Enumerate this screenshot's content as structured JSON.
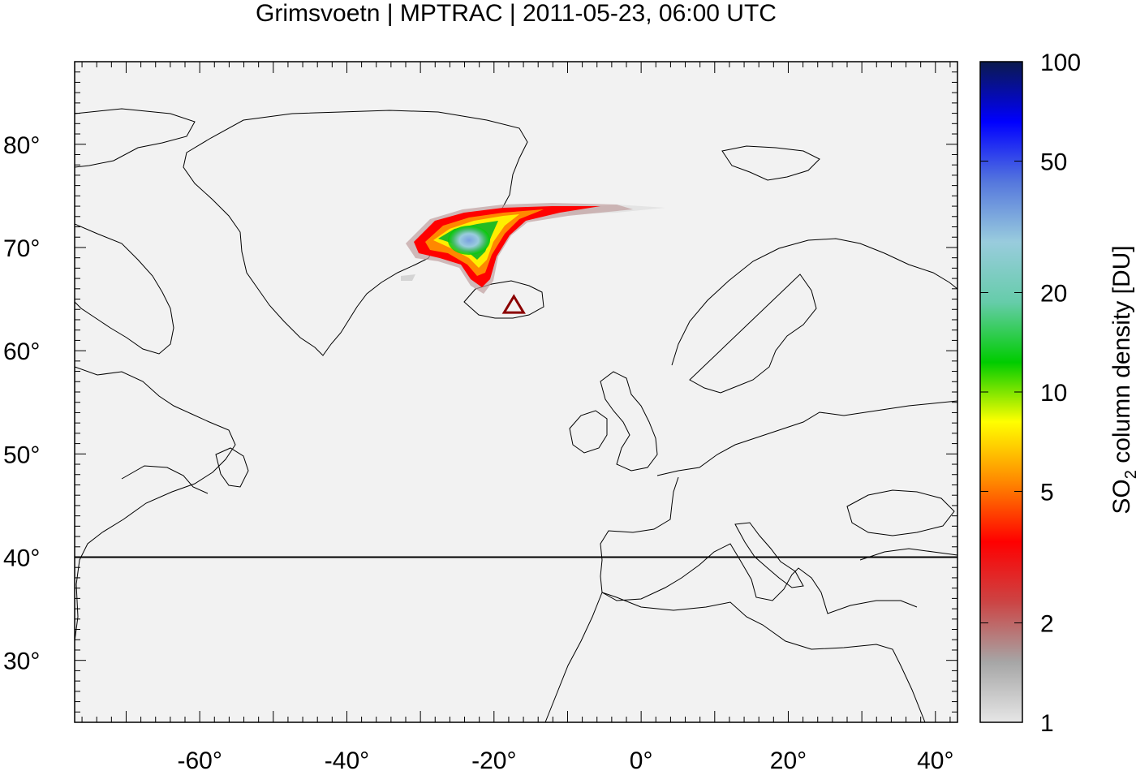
{
  "title": "Grimsvoetn | MPTRAC | 2011-05-23, 06:00 UTC",
  "map": {
    "background": "#f2f2f2",
    "lon_range": [
      -77,
      43
    ],
    "lat_range": [
      24,
      88
    ],
    "lon_ticks": [
      {
        "value": -60,
        "label": "-60°"
      },
      {
        "value": -40,
        "label": "-40°"
      },
      {
        "value": -20,
        "label": "-20°"
      },
      {
        "value": 0,
        "label": "0°"
      },
      {
        "value": 20,
        "label": "20°"
      },
      {
        "value": 40,
        "label": "40°"
      }
    ],
    "lat_ticks": [
      {
        "value": 80,
        "label": "80°"
      },
      {
        "value": 70,
        "label": "70°"
      },
      {
        "value": 60,
        "label": "60°"
      },
      {
        "value": 50,
        "label": "50°"
      },
      {
        "value": 40,
        "label": "40°"
      },
      {
        "value": 30,
        "label": "30°"
      }
    ],
    "reference_line_lat": 40,
    "volcano": {
      "lon": -17.3,
      "lat": 64.4,
      "marker": "triangle-icon",
      "color": "#8b0000"
    }
  },
  "colorbar": {
    "scale": "log",
    "range": [
      1,
      100
    ],
    "ticks": [
      {
        "value": 1,
        "label": "1"
      },
      {
        "value": 2,
        "label": "2"
      },
      {
        "value": 5,
        "label": "5"
      },
      {
        "value": 10,
        "label": "10"
      },
      {
        "value": 20,
        "label": "20"
      },
      {
        "value": 50,
        "label": "50"
      },
      {
        "value": 100,
        "label": "100"
      }
    ],
    "label_prefix": "SO",
    "label_subscript": "2",
    "label_suffix": " column density [DU]",
    "colors": [
      "#e6e6e6",
      "#a6a6a6",
      "#cc4444",
      "#ff0000",
      "#ff8800",
      "#ffff00",
      "#00cc00",
      "#66ccaa",
      "#99ccdd",
      "#5577dd",
      "#0000ff",
      "#0b1a4d"
    ]
  }
}
